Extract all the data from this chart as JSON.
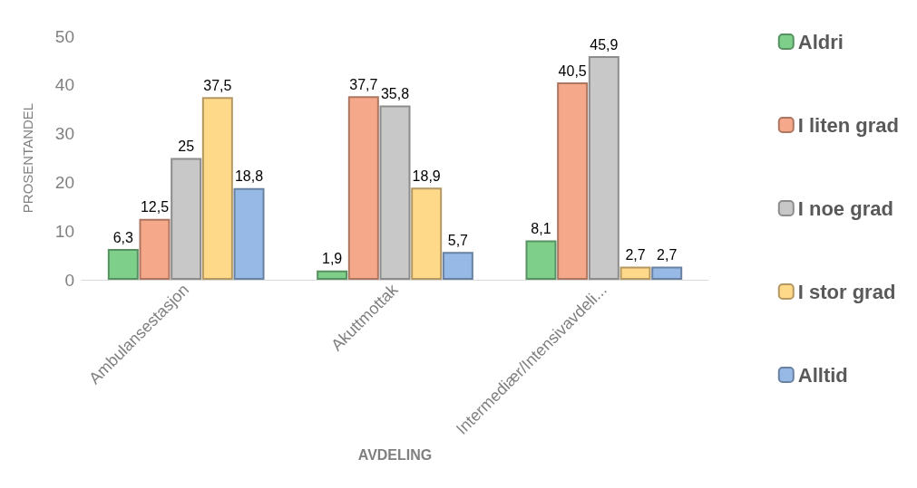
{
  "chart_data": {
    "type": "bar",
    "xlabel": "AVDELING",
    "ylabel": "PROSENTANDEL",
    "categories": [
      "Ambulansestasjon",
      "Akuttmottak",
      "Intermediær/Intensivavdeli..."
    ],
    "series": [
      {
        "name": "Aldri",
        "color": "#7dcf8a",
        "values": [
          6.3,
          1.9,
          8.1
        ],
        "value_labels": [
          "6,3",
          "1,9",
          "8,1"
        ]
      },
      {
        "name": "I liten grad",
        "color": "#f5a98a",
        "values": [
          12.5,
          37.7,
          40.5
        ],
        "value_labels": [
          "12,5",
          "37,7",
          "40,5"
        ]
      },
      {
        "name": "I noe grad",
        "color": "#c8c8c8",
        "values": [
          25,
          35.8,
          45.9
        ],
        "value_labels": [
          "25",
          "35,8",
          "45,9"
        ]
      },
      {
        "name": "I stor grad",
        "color": "#ffd98a",
        "values": [
          37.5,
          18.9,
          2.7
        ],
        "value_labels": [
          "37,5",
          "18,9",
          "2,7"
        ]
      },
      {
        "name": "Alltid",
        "color": "#97b9e6",
        "values": [
          18.8,
          5.7,
          2.7
        ],
        "value_labels": [
          "18,8",
          "5,7",
          "2,7"
        ]
      }
    ],
    "ylim": [
      0,
      50
    ],
    "yticks": [
      0,
      10,
      20,
      30,
      40,
      50
    ],
    "grid": false,
    "legend": "right"
  }
}
